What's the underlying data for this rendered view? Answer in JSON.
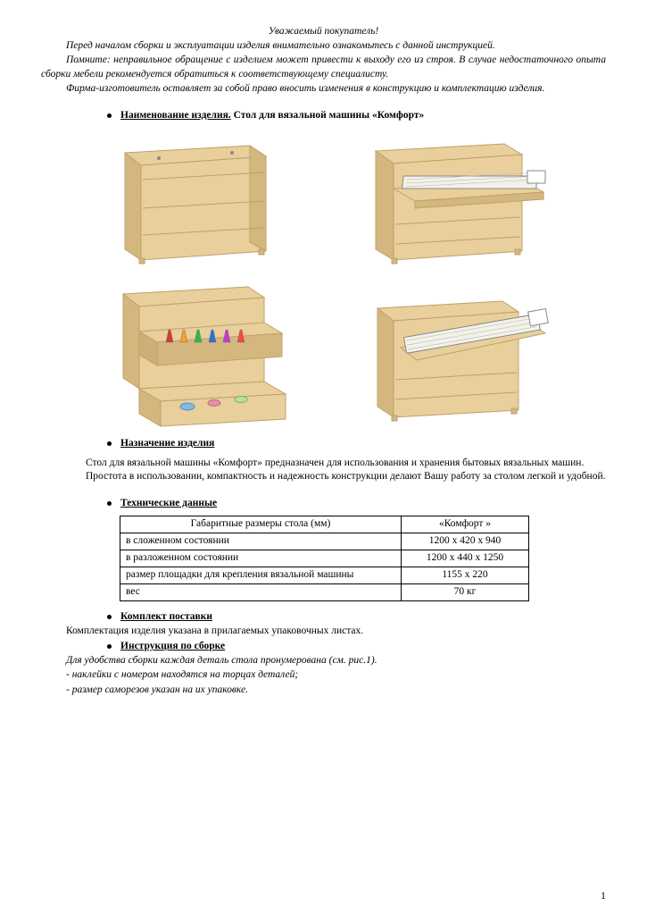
{
  "header": {
    "greeting": "Уважаемый покупатель!",
    "p1": "Перед началом сборки и эксплуатации изделия внимательно ознакомьтесь с данной инструкцией.",
    "p2": "Помните: неправильное обращение с изделием может привести к   выходу его из строя. В случае недостаточного опыта сборки мебели рекомендуется обратиться к соответствующему специалисту.",
    "p3": "Фирма-изготовитель оставляет за собой право вносить изменения в конструкцию и комплектацию изделия."
  },
  "sections": {
    "name_label": "Наименование изделия.",
    "name_value": " Стол для вязальной  машины «Комфорт»",
    "purpose_label": "Назначение изделия",
    "purpose_p1": "Стол для  вязальной  машины «Комфорт» предназначен для использования   и  хранения бытовых  вязальных машин.",
    "purpose_p2": "Простота в использовании, компактность и надежность конструкции делают Вашу работу за столом  легкой и удобной.",
    "tech_label": "Технические данные",
    "supply_label": "Комплект поставки",
    "supply_text": "Комплектация изделия указана в прилагаемых упаковочных листах.",
    "assembly_label": "Инструкция по сборке",
    "assembly_p1": "Для удобства сборки каждая деталь стола пронумерована (см. рис.1).",
    "assembly_p2": "- наклейки с номером  находятся на торцах деталей;",
    "assembly_p3": "- размер саморезов указан на их  упаковке."
  },
  "table": {
    "header_left": "Габаритные размеры стола (мм)",
    "header_right": "«Комфорт »",
    "rows": [
      {
        "label": "в сложенном состоянии",
        "value": "1200 х 420 х 940"
      },
      {
        "label": "в разложенном состоянии",
        "value": "1200 х 440 х 1250"
      },
      {
        "label": "размер площадки для крепления вязальной машины",
        "value": "1155 х 220"
      },
      {
        "label": "вес",
        "value": "70 кг"
      }
    ]
  },
  "styling": {
    "wood_fill": "#e8cf9c",
    "wood_stroke": "#bfa06a",
    "wood_dark": "#d4b77f",
    "machine_fill": "#f2f2e8",
    "machine_stroke": "#888",
    "thread_colors": [
      "#d43a3a",
      "#f5a12b",
      "#2eb84a",
      "#2e6fd4",
      "#c23ad4",
      "#f54a4a"
    ]
  },
  "page_number": "1"
}
